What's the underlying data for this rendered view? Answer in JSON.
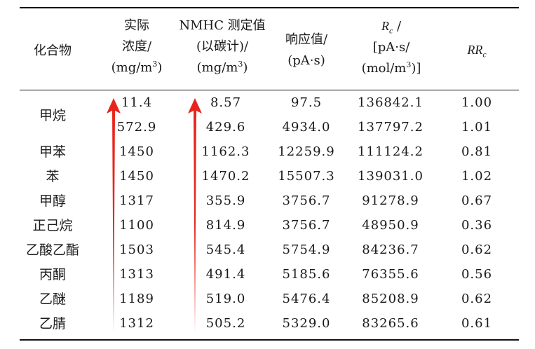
{
  "table": {
    "headers": {
      "compound": "化合物",
      "actual": [
        "实际",
        "浓度/",
        "(mg/m",
        "3",
        ")"
      ],
      "nmhc": [
        "NMHC 测定值",
        "(以碳计)/",
        "(mg/m",
        "3",
        ")"
      ],
      "response": [
        "响应值/",
        "(pA·s)"
      ],
      "rc": [
        "R",
        "c",
        " /",
        "[pA·s/",
        "(mol/m",
        "3",
        ")]"
      ],
      "rrc": [
        "RR",
        "c"
      ]
    },
    "rows": [
      {
        "name": "甲烷",
        "actual": "11.4",
        "nmhc": "8.57",
        "response": "97.5",
        "rc": "136842.1",
        "rrc": "1.00"
      },
      {
        "name": "",
        "actual": "572.9",
        "nmhc": "429.6",
        "response": "4934.0",
        "rc": "137797.2",
        "rrc": "1.01"
      },
      {
        "name": "甲苯",
        "actual": "1450",
        "nmhc": "1162.3",
        "response": "12259.9",
        "rc": "111124.2",
        "rrc": "0.81"
      },
      {
        "name": "苯",
        "actual": "1450",
        "nmhc": "1470.2",
        "response": "15507.3",
        "rc": "139031.0",
        "rrc": "1.02"
      },
      {
        "name": "甲醇",
        "actual": "1317",
        "nmhc": "355.9",
        "response": "3756.7",
        "rc": "91278.9",
        "rrc": "0.67"
      },
      {
        "name": "正己烷",
        "actual": "1100",
        "nmhc": "814.9",
        "response": "3756.7",
        "rc": "48950.9",
        "rrc": "0.36"
      },
      {
        "name": "乙酸乙酯",
        "actual": "1503",
        "nmhc": "545.4",
        "response": "5754.9",
        "rc": "84236.7",
        "rrc": "0.62"
      },
      {
        "name": "丙酮",
        "actual": "1313",
        "nmhc": "491.4",
        "response": "5185.6",
        "rc": "76355.6",
        "rrc": "0.56"
      },
      {
        "name": "乙醚",
        "actual": "1189",
        "nmhc": "519.0",
        "response": "5476.4",
        "rc": "85208.9",
        "rrc": "0.62"
      },
      {
        "name": "乙腈",
        "actual": "1312",
        "nmhc": "505.2",
        "response": "5329.0",
        "rc": "83265.6",
        "rrc": "0.61"
      }
    ]
  },
  "colors": {
    "arrow": "#e8251c",
    "rule": "#111111"
  },
  "icons": {
    "arrows": "up-arrow-icon"
  }
}
